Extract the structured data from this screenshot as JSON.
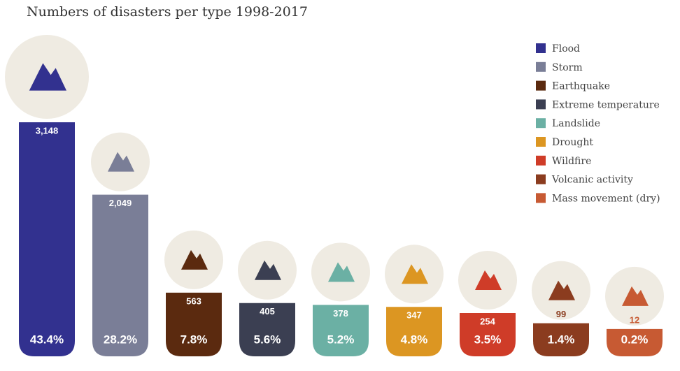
{
  "chart_data": {
    "type": "bar",
    "title": "Numbers of disasters per type 1998-2017",
    "categories": [
      "Flood",
      "Storm",
      "Earthquake",
      "Extreme temperature",
      "Landslide",
      "Drought",
      "Wildfire",
      "Volcanic activity",
      "Mass movement (dry)"
    ],
    "values": [
      3148,
      2049,
      563,
      405,
      378,
      347,
      254,
      99,
      12
    ],
    "value_labels": [
      "3,148",
      "2,049",
      "563",
      "405",
      "378",
      "347",
      "254",
      "99",
      "12"
    ],
    "shares": [
      43.4,
      28.2,
      7.8,
      5.6,
      5.2,
      4.8,
      3.5,
      1.4,
      0.2
    ],
    "share_labels": [
      "43.4%",
      "28.2%",
      "7.8%",
      "5.6%",
      "5.2%",
      "4.8%",
      "3.5%",
      "1.4%",
      "0.2%"
    ],
    "colors": [
      "#32318f",
      "#7a7e97",
      "#5b2a0f",
      "#3b3f52",
      "#6bb0a4",
      "#dc9622",
      "#cf3c28",
      "#8b3c1f",
      "#c75a33"
    ],
    "legend": "top-right"
  }
}
